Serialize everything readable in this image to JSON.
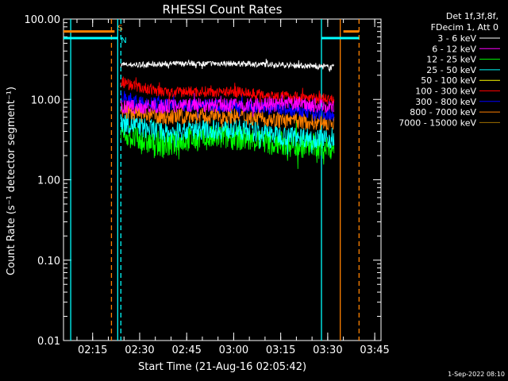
{
  "chart_data": {
    "type": "line",
    "title": "RHESSI Count Rates",
    "xlabel": "Start Time (21-Aug-16 02:05:42)",
    "ylabel": "Count Rate (s⁻¹ detector segment⁻¹)",
    "y_scale": "log",
    "ylim": [
      0.01,
      100
    ],
    "xlim": [
      "02:05:42",
      "03:47:00"
    ],
    "x_ticks": [
      "02:15",
      "02:30",
      "02:45",
      "03:00",
      "03:15",
      "03:30",
      "03:45"
    ],
    "y_ticks": [
      "0.01",
      "0.10",
      "1.00",
      "10.00",
      "100.00"
    ],
    "legend_header": [
      "Det 1f,3f,8f,",
      "FDecim 1, Att 0"
    ],
    "series": [
      {
        "name": "3 - 6 keV",
        "color": "#ffffff",
        "x": [
          "02:24",
          "02:30",
          "02:45",
          "03:00",
          "03:15",
          "03:25",
          "03:32"
        ],
        "y": [
          27,
          27,
          28,
          28,
          27,
          26,
          25
        ]
      },
      {
        "name": "6 - 12 keV",
        "color": "#ff00ff",
        "x": [
          "02:24",
          "02:30",
          "02:45",
          "03:00",
          "03:15",
          "03:20",
          "03:32"
        ],
        "y": [
          8,
          8,
          8.5,
          8.5,
          8.5,
          9,
          8
        ]
      },
      {
        "name": "12 - 25 keV",
        "color": "#00ff00",
        "x": [
          "02:24",
          "02:30",
          "02:40",
          "02:45",
          "03:00",
          "03:15",
          "03:32"
        ],
        "y": [
          4,
          3,
          2.7,
          3.2,
          3.4,
          2.8,
          2.5
        ]
      },
      {
        "name": "25 - 50 keV",
        "color": "#00ffff",
        "x": [
          "02:24",
          "02:30",
          "02:40",
          "02:45",
          "03:00",
          "03:15",
          "03:32"
        ],
        "y": [
          5.5,
          4.5,
          3.8,
          4.2,
          4.3,
          3.6,
          3.2
        ]
      },
      {
        "name": "50 - 100 keV",
        "color": "#ffff00",
        "x": [],
        "y": []
      },
      {
        "name": "100 - 300 keV",
        "color": "#ff0000",
        "x": [
          "02:24",
          "02:30",
          "02:40",
          "02:45",
          "03:00",
          "03:15",
          "03:32"
        ],
        "y": [
          17,
          14,
          12,
          12.5,
          12.5,
          11,
          10
        ]
      },
      {
        "name": "300 - 800 keV",
        "color": "#0000ff",
        "x": [
          "02:24",
          "02:30",
          "02:40",
          "02:45",
          "03:00",
          "03:15",
          "03:32"
        ],
        "y": [
          11,
          9,
          8.5,
          8.5,
          8.3,
          7.5,
          6.5
        ]
      },
      {
        "name": "800 - 7000 keV",
        "color": "#ff8000",
        "x": [
          "02:24",
          "02:30",
          "02:40",
          "02:45",
          "03:00",
          "03:15",
          "03:32"
        ],
        "y": [
          7.5,
          6.5,
          6,
          6.2,
          6.3,
          5.5,
          5
        ]
      },
      {
        "name": "7000 - 15000 keV",
        "color": "#a07000",
        "x": [],
        "y": []
      }
    ],
    "flags": [
      {
        "label": "S",
        "color": "#ff8000",
        "x": [
          "02:05:42",
          "02:22"
        ],
        "y": 70
      },
      {
        "label": "N",
        "color": "#00ffff",
        "x": [
          "02:05:42",
          "02:23"
        ],
        "y": 58
      },
      {
        "label": "",
        "color": "#00ffff",
        "x": [
          "03:28",
          "03:40"
        ],
        "y": 58
      },
      {
        "label": "",
        "color": "#ff8000",
        "x": [
          "03:35",
          "03:40"
        ],
        "y": 70
      }
    ],
    "vlines": [
      {
        "x": "02:08",
        "color": "#00ffff",
        "style": "solid"
      },
      {
        "x": "02:23",
        "color": "#00ffff",
        "style": "solid"
      },
      {
        "x": "02:21",
        "color": "#ff8000",
        "style": "dashed"
      },
      {
        "x": "02:24",
        "color": "#00ffff",
        "style": "dashed"
      },
      {
        "x": "03:28",
        "color": "#00ffff",
        "style": "solid"
      },
      {
        "x": "03:34",
        "color": "#ff8000",
        "style": "solid"
      },
      {
        "x": "03:40",
        "color": "#ff8000",
        "style": "dashed"
      }
    ],
    "legend_placement": "right",
    "grid": false
  },
  "timestamp": "1-Sep-2022 08:10"
}
